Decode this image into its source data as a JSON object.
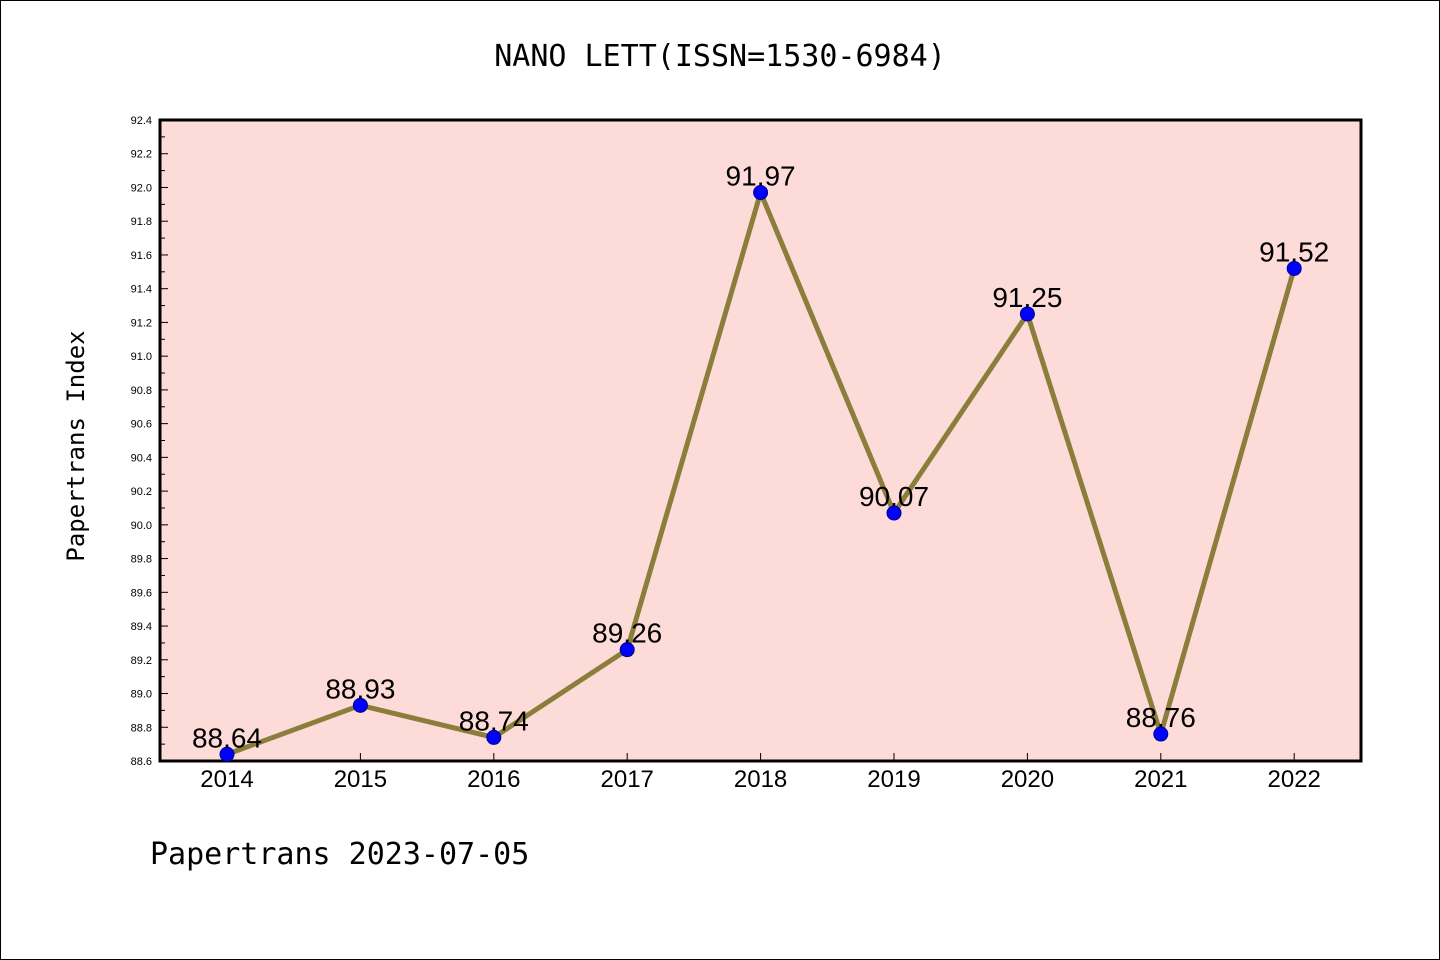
{
  "colors": {
    "plot_background": "#fddbd9",
    "line": "#8b7d3a",
    "marker": "#0000ff",
    "axis": "#000000"
  },
  "chart_data": {
    "type": "line",
    "title": "NANO LETT(ISSN=1530-6984)",
    "xlabel": "",
    "ylabel": "Papertrans Index",
    "footer": "Papertrans 2023-07-05",
    "categories": [
      "2014",
      "2015",
      "2016",
      "2017",
      "2018",
      "2019",
      "2020",
      "2021",
      "2022"
    ],
    "values": [
      88.64,
      88.93,
      88.74,
      89.26,
      91.97,
      90.07,
      91.25,
      88.76,
      91.52
    ],
    "data_labels": [
      "88.64",
      "88.93",
      "88.74",
      "89.26",
      "91.97",
      "90.07",
      "91.25",
      "88.76",
      "91.52"
    ],
    "ylim": [
      88.6,
      92.4
    ],
    "y_ticks": [
      "88.6",
      "88.8",
      "89.0",
      "89.2",
      "89.4",
      "89.6",
      "89.8",
      "90.0",
      "90.2",
      "90.4",
      "90.6",
      "90.8",
      "91.0",
      "91.2",
      "91.4",
      "91.6",
      "91.8",
      "92.0",
      "92.2",
      "92.4"
    ],
    "grid": false,
    "legend": "none"
  }
}
